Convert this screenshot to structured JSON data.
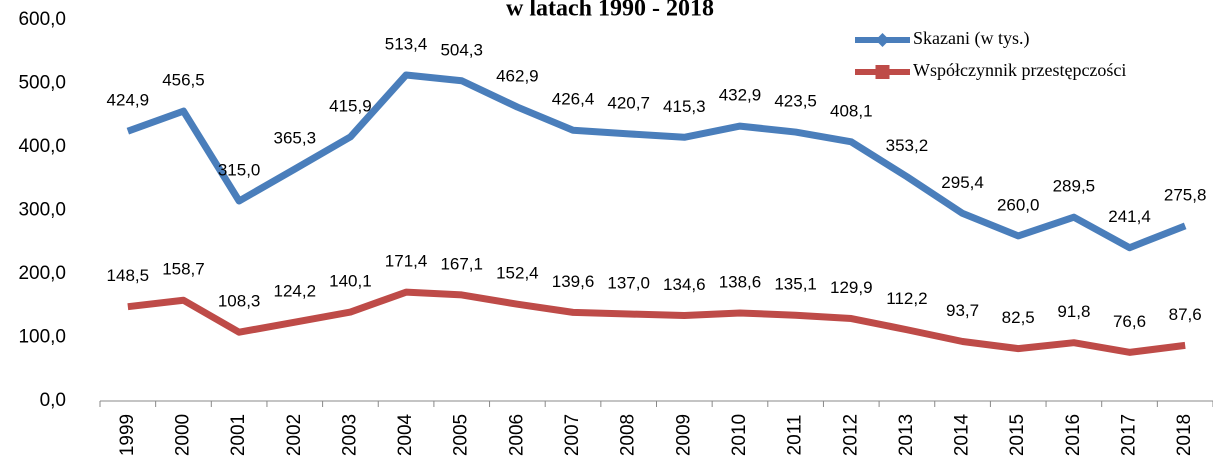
{
  "chart_data": {
    "type": "line",
    "title": "w latach 1990 - 2018",
    "categories": [
      "1999",
      "2000",
      "2001",
      "2002",
      "2003",
      "2004",
      "2005",
      "2006",
      "2007",
      "2008",
      "2009",
      "2010",
      "2011",
      "2012",
      "2013",
      "2014",
      "2015",
      "2016",
      "2017",
      "2018"
    ],
    "series": [
      {
        "name": "Skazani (w tys.)",
        "color": "#4a7ebb",
        "marker": "diamond",
        "values": [
          424.9,
          456.5,
          315.0,
          365.3,
          415.9,
          513.4,
          504.3,
          462.9,
          426.4,
          420.7,
          415.3,
          432.9,
          423.5,
          408.1,
          353.2,
          295.4,
          260.0,
          289.5,
          241.4,
          275.8
        ],
        "value_labels": [
          "424,9",
          "456,5",
          "315,0",
          "365,3",
          "415,9",
          "513,4",
          "504,3",
          "462,9",
          "426,4",
          "420,7",
          "415,3",
          "432,9",
          "423,5",
          "408,1",
          "353,2",
          "295,4",
          "260,0",
          "289,5",
          "241,4",
          "275,8"
        ]
      },
      {
        "name": "Współczynnik przestępczości",
        "color": "#be4b48",
        "marker": "square",
        "values": [
          148.5,
          158.7,
          108.3,
          124.2,
          140.1,
          171.4,
          167.1,
          152.4,
          139.6,
          137.0,
          134.6,
          138.6,
          135.1,
          129.9,
          112.2,
          93.7,
          82.5,
          91.8,
          76.6,
          87.6
        ],
        "value_labels": [
          "148,5",
          "158,7",
          "108,3",
          "124,2",
          "140,1",
          "171,4",
          "167,1",
          "152,4",
          "139,6",
          "137,0",
          "134,6",
          "138,6",
          "135,1",
          "129,9",
          "112,2",
          "93,7",
          "82,5",
          "91,8",
          "76,6",
          "87,6"
        ]
      }
    ],
    "ylim": [
      0,
      600
    ],
    "yticks": [
      {
        "value": 0,
        "label": "0,0"
      },
      {
        "value": 100,
        "label": "100,0"
      },
      {
        "value": 200,
        "label": "200,0"
      },
      {
        "value": 300,
        "label": "300,0"
      },
      {
        "value": 400,
        "label": "400,0"
      },
      {
        "value": 500,
        "label": "500,0"
      },
      {
        "value": 600,
        "label": "600,0"
      }
    ],
    "grid": false,
    "legend": "top-right"
  }
}
